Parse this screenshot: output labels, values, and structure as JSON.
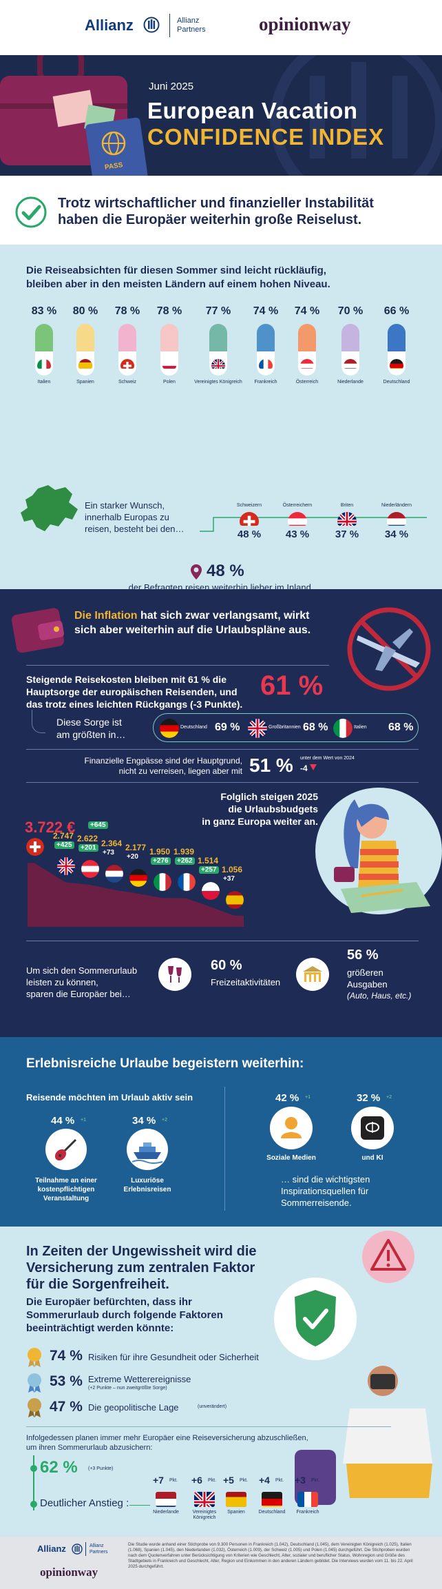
{
  "header": {
    "allianz": "Allianz",
    "partners_line1": "Allianz",
    "partners_line2": "Partners",
    "opinionway": "opinionway"
  },
  "hero": {
    "date": "Juni 2025",
    "title_line1": "European Vacation",
    "title_line2": "CONFIDENCE INDEX",
    "pass_label": "PASS"
  },
  "claim": {
    "text_line1": "Trotz wirtschaftlicher und finanzieller Instabilität",
    "text_line2": "haben die Europäer weiterhin große Reiselust."
  },
  "intent": {
    "headline_line1": "Die Reiseabsichten für diesen Sommer sind leicht rückläufig,",
    "headline_line2": "bleiben aber in den meisten Ländern auf einem hohen Niveau.",
    "countries": [
      {
        "pct": "83 %",
        "name": "Italien",
        "color": "#7cc47a"
      },
      {
        "pct": "80 %",
        "name": "Spanien",
        "color": "#f7d98a"
      },
      {
        "pct": "78 %",
        "name": "Schweiz",
        "color": "#f2b3cf"
      },
      {
        "pct": "78 %",
        "name": "Polen",
        "color": "#f7c6c6"
      },
      {
        "pct": "77 %",
        "name": "Vereinigtes Königreich",
        "color": "#76b8a8"
      },
      {
        "pct": "74 %",
        "name": "Frankreich",
        "color": "#4e92c9"
      },
      {
        "pct": "74 %",
        "name": "Österreich",
        "color": "#f49a6a"
      },
      {
        "pct": "70 %",
        "name": "Niederlande",
        "color": "#c5b3e0"
      },
      {
        "pct": "66 %",
        "name": "Deutschland",
        "color": "#3b77c4"
      }
    ],
    "wish_line1": "Ein starker Wunsch,",
    "wish_line2": "innerhalb Europas zu",
    "wish_line3": "reisen, besteht bei den…",
    "wish": [
      {
        "name": "Schweizern",
        "pct": "48 %"
      },
      {
        "name": "Österreichern",
        "pct": "43 %"
      },
      {
        "name": "Briten",
        "pct": "37 %"
      },
      {
        "name": "Niederländern",
        "pct": "34 %"
      }
    ],
    "home_pct": "48 %",
    "home_text": "der Befragten reisen weiterhin lieber im Inland."
  },
  "inflation": {
    "headline_hl": "Die Inflation",
    "headline_rest1": " hat sich zwar verlangsamt, wirkt",
    "headline_rest2": "sich aber weiterhin auf die Urlaubspläne aus.",
    "cost_line1": "Steigende Reisekosten bleiben mit 61 % die",
    "cost_line2": "Hauptsorge der europäischen Reisenden, und",
    "cost_line3": "das trotz eines leichten Rückgangs (-3 Punkte).",
    "cost_pct": "61 %",
    "worry_line1": "Diese Sorge ist",
    "worry_line2": "am größten in…",
    "worry": [
      {
        "name": "Deutschland",
        "pct": "69 %"
      },
      {
        "name": "Großbritannien",
        "pct": "68 %"
      },
      {
        "name": "Italien",
        "pct": "68 %"
      }
    ],
    "fin_line1": "Finanzielle Engpässe sind der Hauptgrund,",
    "fin_line2": "nicht zu verreisen, liegen aber mit",
    "fin_pct": "51 %",
    "fin_note": "unter dem Wert von 2024",
    "fin_delta": "-4",
    "budget_line1": "Folglich steigen 2025",
    "budget_line2": "die Urlaubsbudgets",
    "budget_line3": "in ganz Europa weiter an.",
    "budgets": [
      {
        "value": "3.722 €",
        "delta": "+645",
        "boxed": true
      },
      {
        "value": "2.747",
        "delta": "+425",
        "boxed": true
      },
      {
        "value": "2.622",
        "delta": "+201",
        "boxed": true
      },
      {
        "value": "2.364",
        "delta": "+73",
        "boxed": false
      },
      {
        "value": "2.177",
        "delta": "+20",
        "boxed": false
      },
      {
        "value": "1.950",
        "delta": "+276",
        "boxed": true
      },
      {
        "value": "1.939",
        "delta": "+262",
        "boxed": true
      },
      {
        "value": "1.514",
        "delta": "+257",
        "boxed": true
      },
      {
        "value": "1.056",
        "delta": "+37",
        "boxed": false
      }
    ],
    "save_line1": "Um sich den Sommerurlaub",
    "save_line2": "leisten zu können,",
    "save_line3": "sparen die Europäer bei…",
    "save_a_pct": "60 %",
    "save_a_label": "Freizeitaktivitäten",
    "save_b_pct": "56 %",
    "save_b_line1": "größeren",
    "save_b_line2": "Ausgaben",
    "save_b_line3": "(Auto, Haus, etc.)"
  },
  "experience": {
    "headline": "Erlebnisreiche Urlaube begeistern weiterhin:",
    "active_label": "Reisende möchten im Urlaub aktiv sein",
    "a1_pct": "44 %",
    "a1_delta": "+1",
    "a1_line1": "Teilnahme an einer",
    "a1_line2": "kostenpflichtigen",
    "a1_line3": "Veranstaltung",
    "a2_pct": "34 %",
    "a2_delta": "+2",
    "a2_line1": "Luxuriöse",
    "a2_line2": "Erlebnisreisen",
    "s1_pct": "42 %",
    "s1_delta": "+1",
    "s1_label": "Soziale Medien",
    "s2_pct": "32 %",
    "s2_delta": "+2",
    "s2_label": "und KI",
    "src_line1": "… sind die wichtigsten",
    "src_line2": "Inspirationsquellen für",
    "src_line3": "Sommerreisende."
  },
  "insurance": {
    "headline_line1": "In Zeiten der Ungewissheit wird die",
    "headline_line2": "Versicherung zum zentralen Faktor",
    "headline_line3": "für die Sorgenfreiheit.",
    "fear_line1": "Die Europäer befürchten, dass ihr",
    "fear_line2": "Sommerurlaub durch folgende Faktoren",
    "fear_line3": "beeinträchtigt werden könnte:",
    "r1_pct": "74 %",
    "r1_text": "Risiken für ihre Gesundheit oder Sicherheit",
    "r2_pct": "53 %",
    "r2_text": "Extreme Wetterereignisse",
    "r2_note": "(+2 Punkte – nun zweitgrößte Sorge)",
    "r3_pct": "47 %",
    "r3_text": "Die geopolitische Lage",
    "r3_note": "(unverändert)",
    "plan_line1": "Infolgedessen planen immer mehr Europäer eine Reiseversicherung abzuschließen,",
    "plan_line2": "um ihren Sommerurlaub abzusichern:",
    "plan_pct": "62 %",
    "plan_note": "(+3 Punkte)",
    "rise_label": "Deutlicher Anstieg :",
    "rise": [
      {
        "delta": "+7",
        "unit": "Pkt.",
        "name": "Niederlande"
      },
      {
        "delta": "+6",
        "unit": "Pkt.",
        "name": "Vereinigtes Königreich"
      },
      {
        "delta": "+5",
        "unit": "Pkt.",
        "name": "Spanien"
      },
      {
        "delta": "+4",
        "unit": "Pkt.",
        "name": "Deutschland"
      },
      {
        "delta": "+3",
        "unit": "Pkt.",
        "name": "Frankreich"
      }
    ]
  },
  "footer": {
    "allianz": "Allianz",
    "partners_line1": "Allianz",
    "partners_line2": "Partners",
    "opinionway": "opinionway",
    "note": "Die Studie wurde anhand einer Stichprobe von 9.300 Personen in Frankreich (1.042), Deutschland (1.045), dem Vereinigten Königreich (1.025), Italien (1.068), Spanien (1.045), den Niederlanden (1.032), Österreich (1.009), der Schweiz (1.005) und Polen (1.045) durchgeführt. Die Stichproben wurden nach dem Quotenverfahren unter Berücksichtigung von Kriterien wie Geschlecht, Alter, sozialer und beruflicher Status, Wohnregion und Größe des Stadtgebiets in Frankreich und Geschlecht, Alter, Region und Einkommen in den anderen Ländern gebildet. Die Interviews wurden vom 11. bis 22. April 2025 durchgeführt."
  }
}
